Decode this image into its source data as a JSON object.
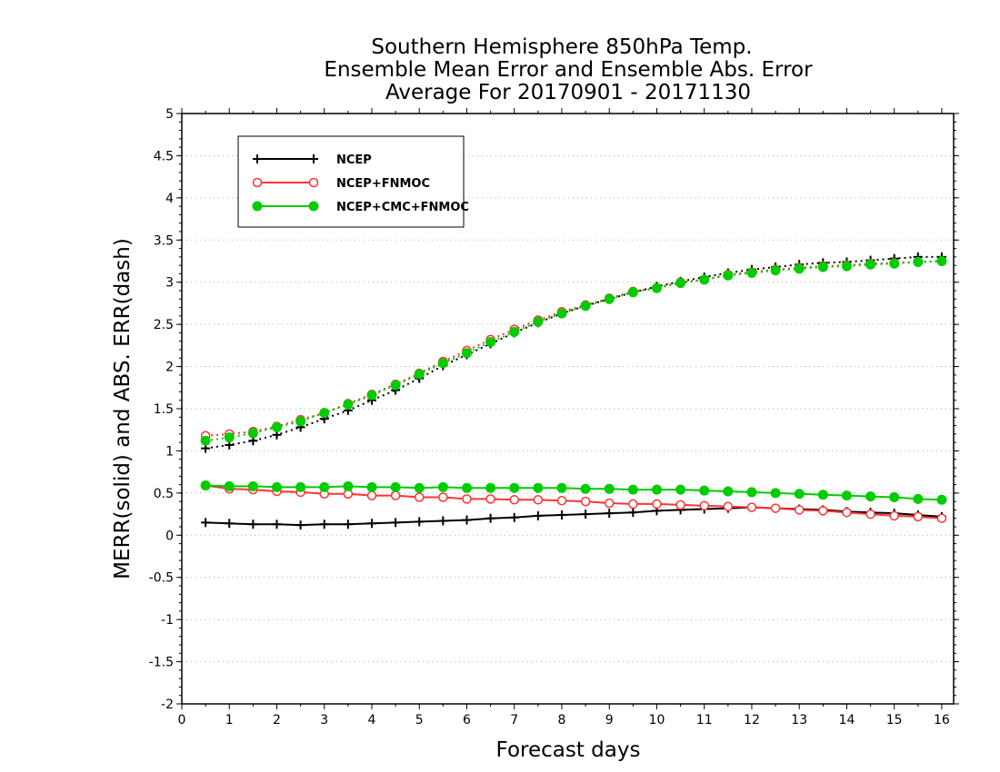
{
  "chart_data": {
    "type": "line",
    "title": [
      "Southern Hemisphere 850hPa Temp.",
      "Ensemble Mean Error and Ensemble Abs. Error",
      "Average For 20170901 - 20171130"
    ],
    "xlabel": "Forecast days",
    "ylabel": "MERR(solid) and ABS. ERR(dash)",
    "xlim": [
      0,
      16.25
    ],
    "ylim": [
      -2,
      5
    ],
    "xticks": [
      0,
      1,
      2,
      3,
      4,
      5,
      6,
      7,
      8,
      9,
      10,
      11,
      12,
      13,
      14,
      15,
      16
    ],
    "yticks": [
      -2,
      -1.5,
      -1,
      -0.5,
      0,
      0.5,
      1,
      1.5,
      2,
      2.5,
      3,
      3.5,
      4,
      4.5,
      5
    ],
    "ytick_labels": [
      "-2",
      "-1.5",
      "-1",
      "-0.5",
      "0",
      "0.5",
      "1",
      "1.5",
      "2",
      "2.5",
      "3",
      "3.5",
      "4",
      "4.5",
      "5"
    ],
    "grid": true,
    "legend_position": "top-left",
    "x": [
      0.5,
      1,
      1.5,
      2,
      2.5,
      3,
      3.5,
      4,
      4.5,
      5,
      5.5,
      6,
      6.5,
      7,
      7.5,
      8,
      8.5,
      9,
      9.5,
      10,
      10.5,
      11,
      11.5,
      12,
      12.5,
      13,
      13.5,
      14,
      14.5,
      15,
      15.5,
      16
    ],
    "series": [
      {
        "name": "NCEP",
        "color": "#000000",
        "marker": "plus",
        "merr": [
          0.15,
          0.14,
          0.13,
          0.13,
          0.12,
          0.13,
          0.13,
          0.14,
          0.15,
          0.16,
          0.17,
          0.18,
          0.2,
          0.21,
          0.23,
          0.24,
          0.25,
          0.26,
          0.27,
          0.29,
          0.3,
          0.31,
          0.32,
          0.33,
          0.32,
          0.31,
          0.3,
          0.28,
          0.27,
          0.26,
          0.24,
          0.22
        ],
        "abserr": [
          1.03,
          1.07,
          1.12,
          1.19,
          1.28,
          1.38,
          1.48,
          1.6,
          1.72,
          1.86,
          2.01,
          2.14,
          2.27,
          2.4,
          2.52,
          2.63,
          2.72,
          2.8,
          2.88,
          2.95,
          3.01,
          3.06,
          3.11,
          3.15,
          3.18,
          3.21,
          3.23,
          3.24,
          3.26,
          3.28,
          3.3,
          3.3
        ]
      },
      {
        "name": "NCEP+FNMOC",
        "color": "#ff3333",
        "marker": "circle-open",
        "merr": [
          0.59,
          0.55,
          0.54,
          0.52,
          0.51,
          0.49,
          0.49,
          0.47,
          0.47,
          0.45,
          0.45,
          0.43,
          0.43,
          0.42,
          0.42,
          0.41,
          0.4,
          0.38,
          0.37,
          0.37,
          0.36,
          0.35,
          0.34,
          0.33,
          0.32,
          0.3,
          0.29,
          0.27,
          0.25,
          0.23,
          0.22,
          0.2
        ],
        "abserr": [
          1.18,
          1.2,
          1.23,
          1.29,
          1.37,
          1.45,
          1.56,
          1.67,
          1.79,
          1.92,
          2.06,
          2.19,
          2.32,
          2.44,
          2.55,
          2.65,
          2.73,
          2.81,
          2.89,
          2.93,
          3.0,
          3.03,
          3.09,
          3.12,
          3.15,
          3.17,
          3.19,
          3.2,
          3.22,
          3.23,
          3.24,
          3.25
        ]
      },
      {
        "name": "NCEP+CMC+FNMOC",
        "color": "#00cc00",
        "marker": "circle-filled",
        "merr": [
          0.59,
          0.58,
          0.58,
          0.57,
          0.57,
          0.57,
          0.58,
          0.57,
          0.57,
          0.56,
          0.57,
          0.56,
          0.56,
          0.56,
          0.56,
          0.56,
          0.55,
          0.55,
          0.54,
          0.54,
          0.54,
          0.53,
          0.52,
          0.51,
          0.5,
          0.49,
          0.48,
          0.47,
          0.46,
          0.45,
          0.43,
          0.42
        ],
        "abserr": [
          1.12,
          1.16,
          1.21,
          1.28,
          1.35,
          1.45,
          1.55,
          1.66,
          1.78,
          1.91,
          2.04,
          2.16,
          2.29,
          2.41,
          2.53,
          2.63,
          2.72,
          2.8,
          2.88,
          2.93,
          2.99,
          3.03,
          3.08,
          3.11,
          3.14,
          3.16,
          3.18,
          3.19,
          3.21,
          3.22,
          3.24,
          3.25
        ]
      }
    ]
  }
}
